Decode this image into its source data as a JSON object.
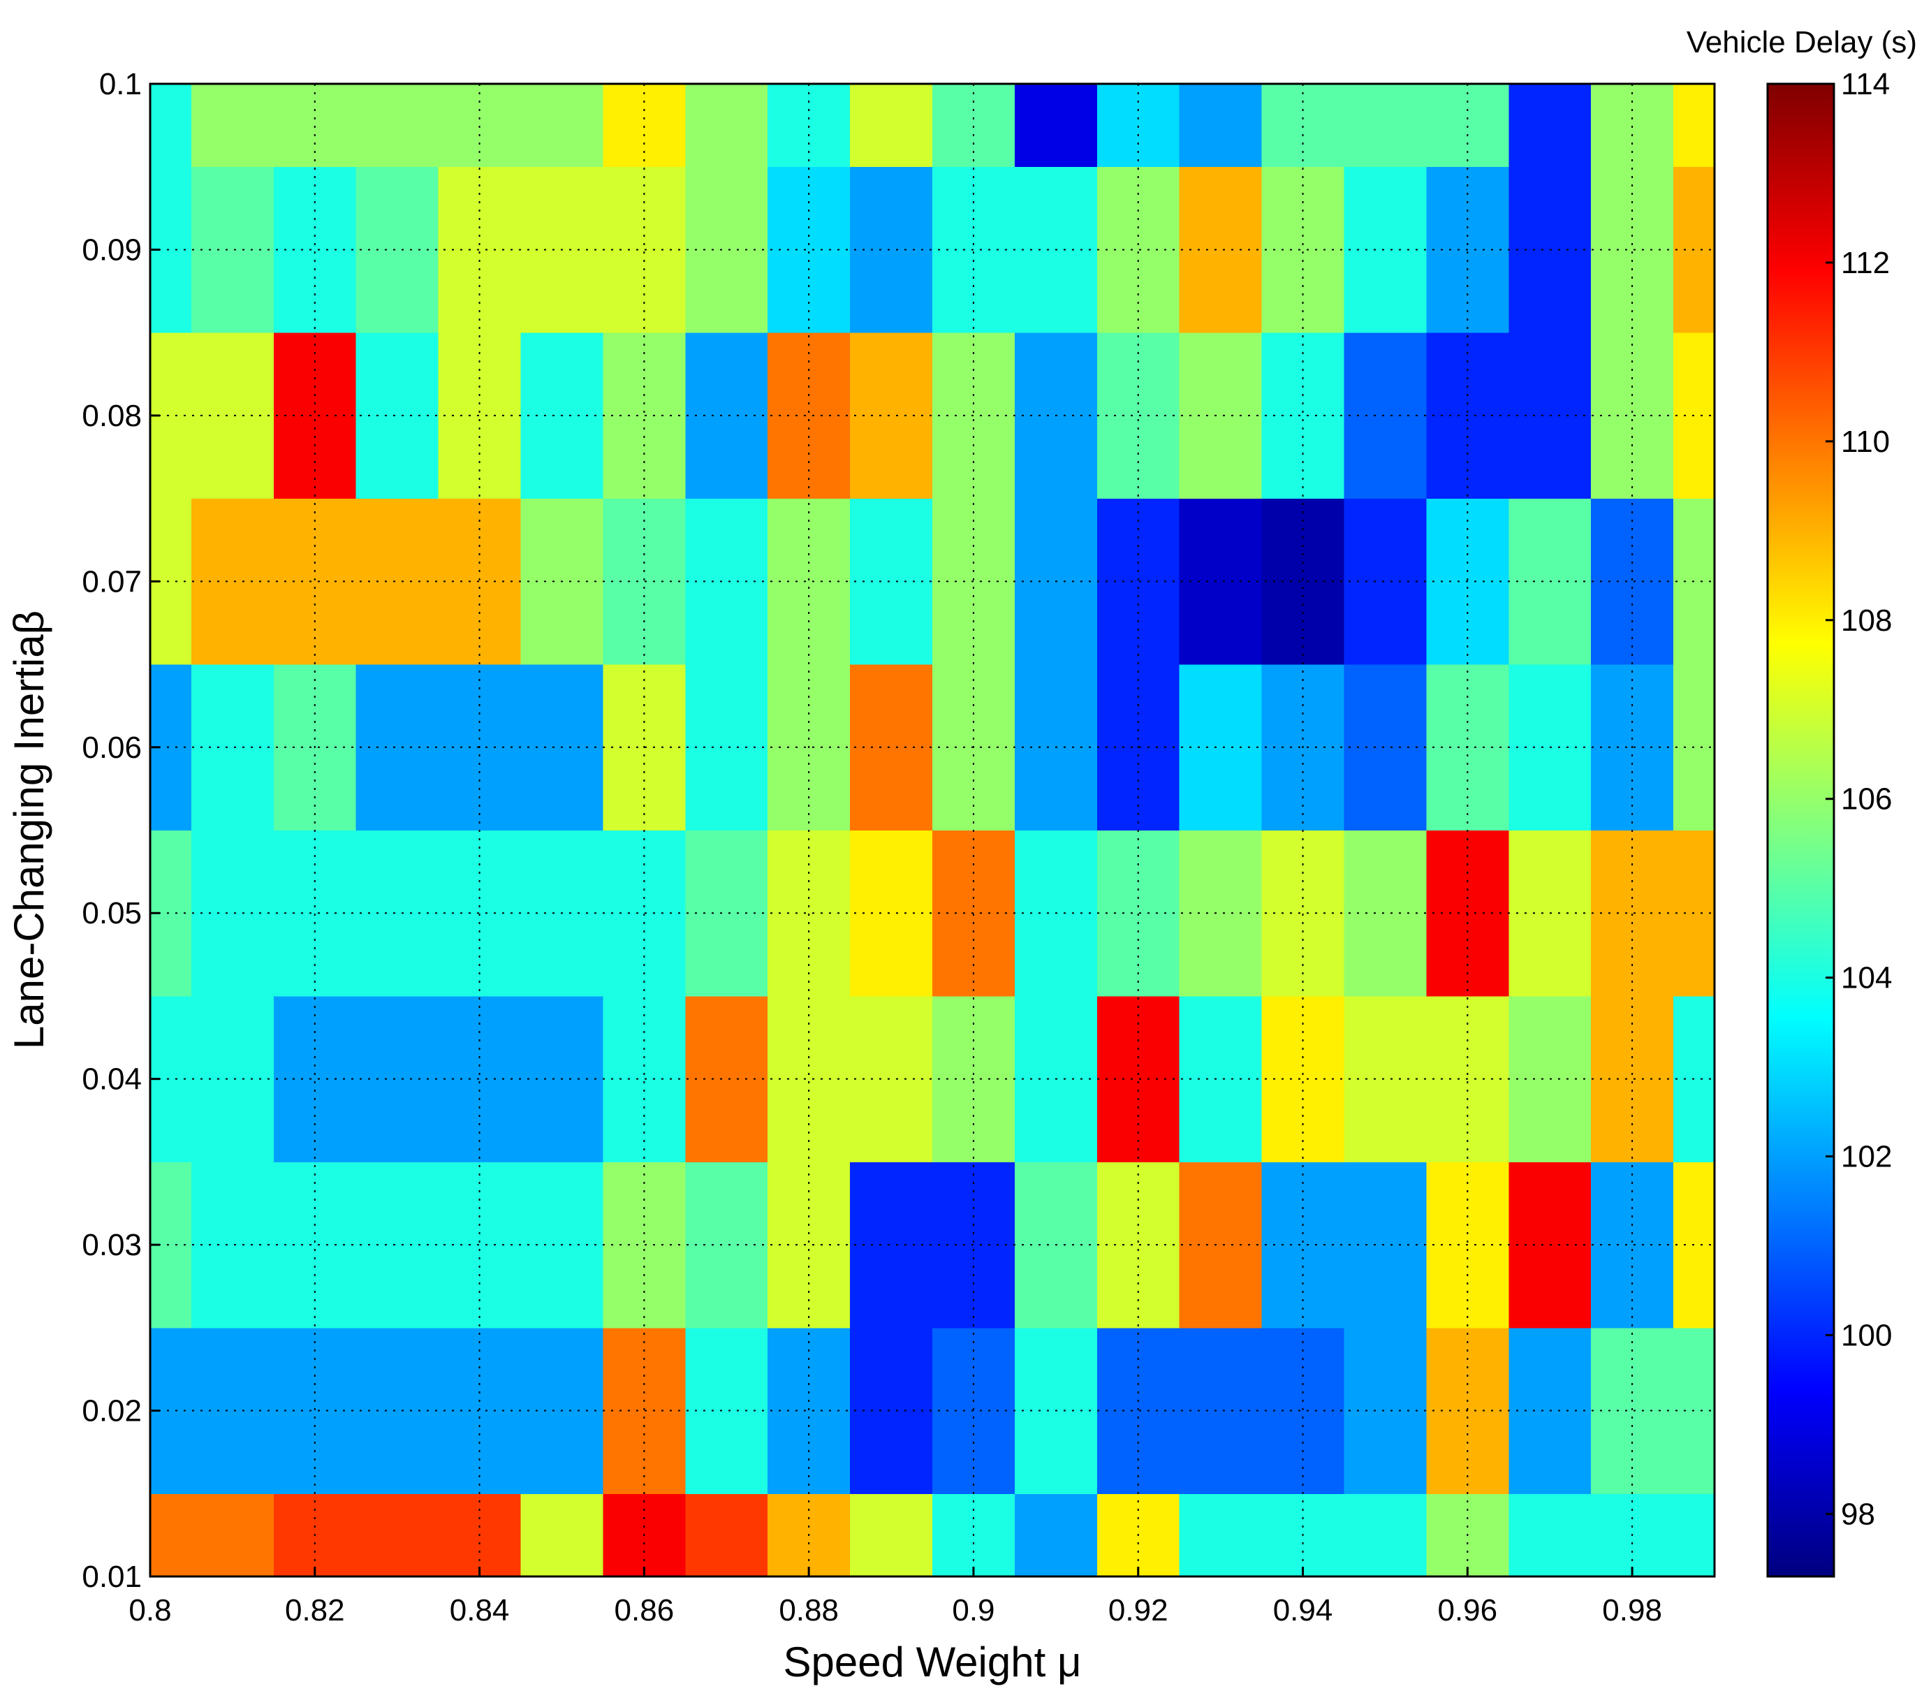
{
  "chart_data": {
    "type": "contour",
    "colormap": "jet",
    "x_label": "Speed Weight μ",
    "y_label": "Lane-Changing Inertiaβ",
    "colorbar_label": "Vehicle Delay (s)",
    "x": [
      0.8,
      0.81,
      0.82,
      0.83,
      0.84,
      0.85,
      0.86,
      0.87,
      0.88,
      0.89,
      0.9,
      0.91,
      0.92,
      0.93,
      0.94,
      0.95,
      0.96,
      0.97,
      0.98,
      0.99
    ],
    "y": [
      0.01,
      0.02,
      0.03,
      0.04,
      0.05,
      0.06,
      0.07,
      0.08,
      0.09,
      0.1
    ],
    "z": [
      [
        110,
        110,
        111,
        111,
        111,
        107,
        112,
        111,
        109,
        107,
        104,
        102,
        108,
        104,
        104,
        104,
        106,
        104,
        104,
        104
      ],
      [
        102,
        102,
        102,
        102,
        102,
        102,
        110,
        104,
        102,
        100,
        101,
        104,
        101,
        101,
        101,
        102,
        109,
        102,
        105,
        105
      ],
      [
        105,
        104,
        104,
        104,
        104,
        104,
        106,
        105,
        107,
        100,
        100,
        105,
        107,
        110,
        102,
        102,
        108,
        112,
        102,
        108
      ],
      [
        104,
        104,
        102,
        102,
        102,
        102,
        104,
        110,
        107,
        107,
        106,
        104,
        112,
        104,
        108,
        107,
        107,
        106,
        109,
        104
      ],
      [
        105,
        104,
        104,
        104,
        104,
        104,
        104,
        105,
        107,
        108,
        110,
        104,
        105,
        106,
        107,
        106,
        112,
        107,
        109,
        109
      ],
      [
        102,
        104,
        105,
        102,
        102,
        102,
        107,
        104,
        106,
        110,
        106,
        102,
        100,
        103,
        102,
        101,
        105,
        104,
        102,
        106
      ],
      [
        107,
        109,
        109,
        109,
        109,
        106,
        105,
        104,
        106,
        104,
        106,
        102,
        100,
        98.5,
        98,
        100,
        103,
        105,
        101,
        106
      ],
      [
        107,
        107,
        112,
        104,
        107,
        104,
        106,
        102,
        110,
        109,
        106,
        102,
        105,
        106,
        104,
        101,
        100,
        100,
        106,
        108
      ],
      [
        104,
        105,
        104,
        105,
        107,
        107,
        107,
        106,
        103,
        102,
        104,
        104,
        106,
        109,
        106,
        104,
        102,
        100,
        106,
        109
      ],
      [
        104,
        106,
        106,
        106,
        106,
        106,
        108,
        106,
        104,
        107,
        105,
        99,
        103,
        102,
        105,
        105,
        105,
        100,
        106,
        108
      ]
    ],
    "xlim": [
      0.8,
      0.99
    ],
    "xticks": [
      0.8,
      0.82,
      0.84,
      0.86,
      0.88,
      0.9,
      0.92,
      0.94,
      0.96,
      0.98
    ],
    "ylim": [
      0.01,
      0.1
    ],
    "yticks": [
      0.01,
      0.02,
      0.03,
      0.04,
      0.05,
      0.06,
      0.07,
      0.08,
      0.09,
      0.1
    ],
    "clim": [
      97.3,
      114
    ],
    "cticks": [
      98,
      100,
      102,
      104,
      106,
      108,
      110,
      112,
      114
    ],
    "grid": true
  }
}
